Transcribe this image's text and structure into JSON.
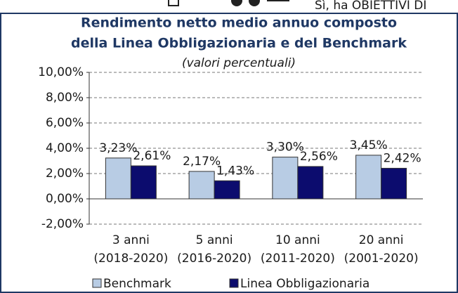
{
  "header_text": "Sì, ha OBIETTIVI DI",
  "chart_data": {
    "type": "bar",
    "title": [
      "Rendimento netto medio annuo composto",
      "della Linea Obbligazionaria e del Benchmark"
    ],
    "subtitle": "(valori percentuali)",
    "categories": [
      [
        "3 anni",
        "(2018-2020)"
      ],
      [
        "5 anni",
        "(2016-2020)"
      ],
      [
        "10 anni",
        "(2011-2020)"
      ],
      [
        "20 anni",
        "(2001-2020)"
      ]
    ],
    "series": [
      {
        "name": "Benchmark",
        "color": "#b8cce4",
        "values": [
          3.23,
          2.17,
          3.3,
          3.45
        ],
        "value_labels": [
          "3,23%",
          "2,17%",
          "3,30%",
          "3,45%"
        ]
      },
      {
        "name": "Linea Obbligazionaria",
        "color": "#0c0c6e",
        "values": [
          2.61,
          1.43,
          2.56,
          2.42
        ],
        "value_labels": [
          "2,61%",
          "1,43%",
          "2,56%",
          "2,42%"
        ]
      }
    ],
    "ylim": [
      -2,
      10
    ],
    "yticks": [
      {
        "value": -2,
        "label": "-2,00%"
      },
      {
        "value": 0,
        "label": "0,00%"
      },
      {
        "value": 2,
        "label": "2,00%"
      },
      {
        "value": 4,
        "label": "4,00%"
      },
      {
        "value": 6,
        "label": "6,00%"
      },
      {
        "value": 8,
        "label": "8,00%"
      },
      {
        "value": 10,
        "label": "10,00%"
      }
    ],
    "grid": true,
    "legend": "bottom"
  }
}
